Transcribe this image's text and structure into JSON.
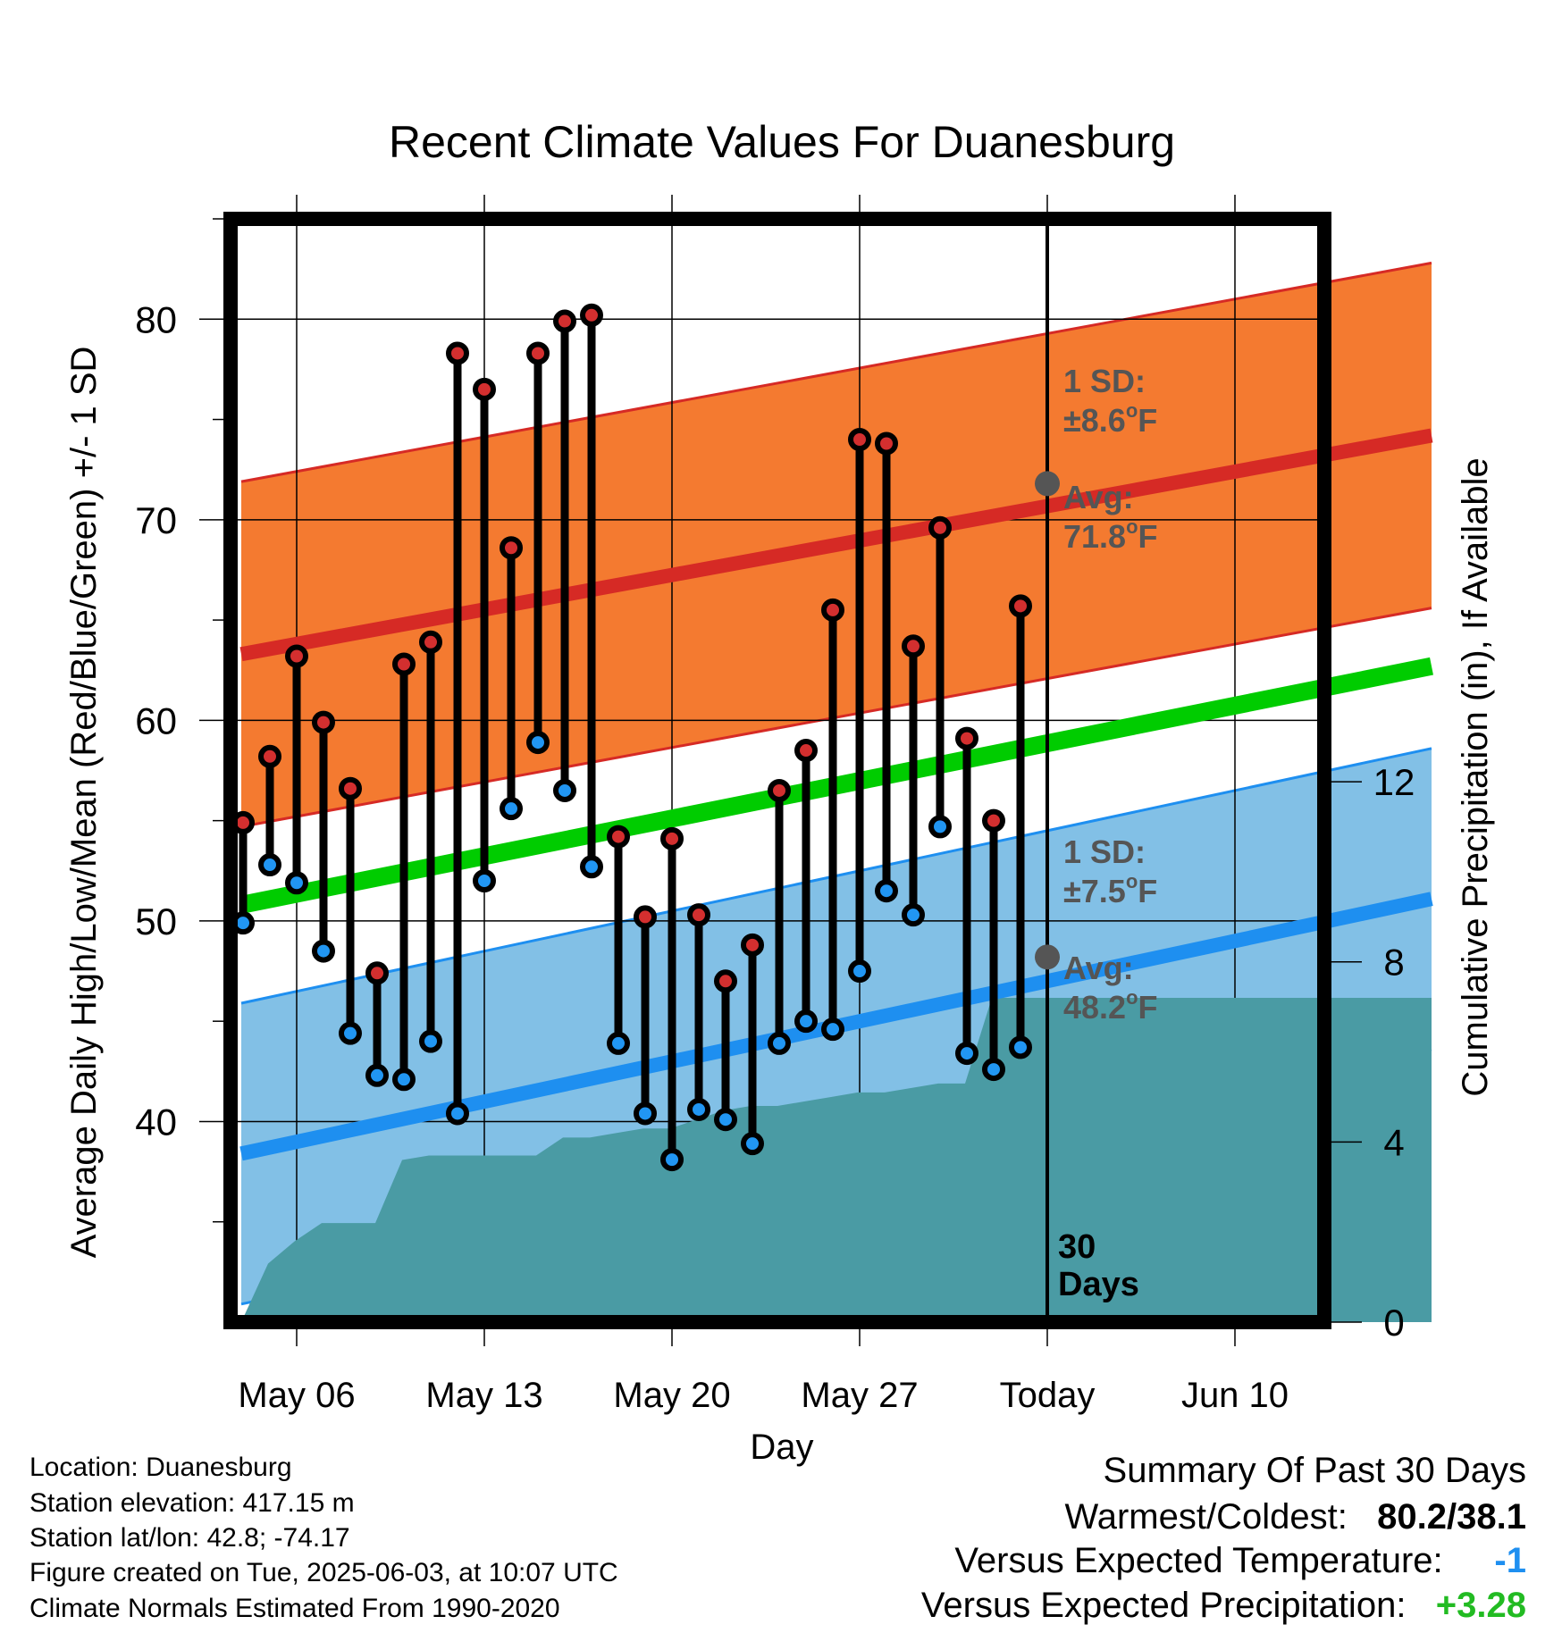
{
  "chart_data": {
    "type": "line",
    "title": "Recent Climate Values For Duanesburg",
    "xlabel": "Day",
    "ylabel": "Average Daily High/Low/Mean (Red/Blue/Green) +/- 1 SD",
    "y2label": "Cumulative Precipitation (in), If Available",
    "ylim": [
      30,
      85
    ],
    "y_ticks": [
      40,
      50,
      60,
      70,
      80
    ],
    "y2lim": [
      0,
      24.5
    ],
    "y2_ticks": [
      0,
      4,
      8,
      12
    ],
    "x_ticks": [
      "May 06",
      "May 13",
      "May 20",
      "May 27",
      "Today",
      "Jun 10"
    ],
    "today_label": "30 Days",
    "days": [
      "May 04",
      "May 05",
      "May 06",
      "May 07",
      "May 08",
      "May 09",
      "May 10",
      "May 11",
      "May 12",
      "May 13",
      "May 14",
      "May 15",
      "May 16",
      "May 17",
      "May 18",
      "May 19",
      "May 20",
      "May 21",
      "May 22",
      "May 23",
      "May 24",
      "May 25",
      "May 26",
      "May 27",
      "May 28",
      "May 29",
      "May 30",
      "May 31",
      "Jun 01",
      "Jun 02"
    ],
    "highs": [
      54.9,
      58.2,
      63.2,
      59.9,
      56.6,
      47.4,
      62.8,
      63.9,
      78.3,
      76.5,
      68.6,
      78.3,
      79.9,
      80.2,
      54.2,
      50.2,
      54.1,
      50.3,
      47.0,
      48.8,
      56.5,
      58.5,
      65.5,
      74.0,
      73.8,
      63.7,
      69.6,
      59.1,
      55.0,
      65.7
    ],
    "lows": [
      49.9,
      52.8,
      51.9,
      48.5,
      44.4,
      42.3,
      42.1,
      44.0,
      40.4,
      52.0,
      55.6,
      58.9,
      56.5,
      52.7,
      43.9,
      40.4,
      38.1,
      40.6,
      40.1,
      38.9,
      43.9,
      45.0,
      44.6,
      47.5,
      51.5,
      50.3,
      54.7,
      43.4,
      42.6,
      43.7
    ],
    "normals": {
      "avg_high": {
        "start": 63.3,
        "end": 74.2,
        "today": 71.8
      },
      "high_sd": 8.6,
      "avg_low": {
        "start": 38.4,
        "end": 51.1,
        "today": 48.2
      },
      "low_sd": 7.5,
      "avg_mean": {
        "start": 50.8,
        "end": 62.7
      }
    },
    "precip_cumulative": [
      0.0,
      1.3,
      1.8,
      2.2,
      2.2,
      2.2,
      3.6,
      3.7,
      3.7,
      3.7,
      3.7,
      3.7,
      4.1,
      4.1,
      4.2,
      4.3,
      4.3,
      4.5,
      4.7,
      4.8,
      4.8,
      4.9,
      5.0,
      5.1,
      5.1,
      5.2,
      5.3,
      5.3,
      7.2,
      7.2,
      7.2
    ],
    "annotations": {
      "high_sd": {
        "line1": "1 SD:",
        "line2": "±8.6",
        "unit": "F"
      },
      "high_avg": {
        "line1": "Avg:",
        "line2": "71.8",
        "unit": "F"
      },
      "low_sd": {
        "line1": "1 SD:",
        "line2": "±7.5",
        "unit": "F"
      },
      "low_avg": {
        "line1": "Avg:",
        "line2": "48.2",
        "unit": "F"
      },
      "degree_symbol": "o"
    },
    "colors": {
      "high_band": "#f47a30",
      "high_line": "#d62a25",
      "low_band": "#82c0e6",
      "low_line": "#1e8ff0",
      "mean_line": "#00cc00",
      "precip": "#4a9ba4",
      "high_dot": "#d32f2f",
      "low_dot": "#2196f3",
      "today_dot": "#555555"
    },
    "grid": true
  },
  "info": {
    "location": "Location: Duanesburg",
    "elevation": "Station elevation: 417.15 m",
    "latlon": "Station lat/lon: 42.8; -74.17",
    "created": "Figure created on Tue, 2025-06-03, at 10:07 UTC",
    "normals": "Climate Normals Estimated From 1990-2020"
  },
  "summary": {
    "heading": "Summary Of Past 30 Days",
    "warmest_label": "Warmest/Coldest:",
    "warmest_value": "80.2/38.1",
    "temp_label": "Versus Expected Temperature:",
    "temp_value": "-1",
    "temp_color": "#1e8ff0",
    "precip_label": "Versus Expected Precipitation:",
    "precip_value": "+3.28",
    "precip_color": "#22bb22"
  }
}
